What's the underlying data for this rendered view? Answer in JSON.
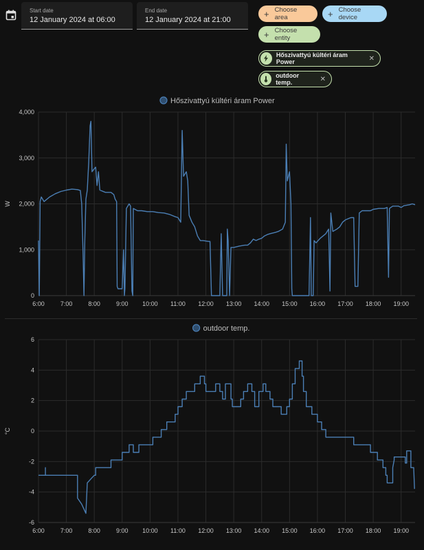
{
  "picker": {
    "start_label": "Start date",
    "start_value": "12 January 2024 at 06:00",
    "end_label": "End date",
    "end_value": "12 January 2024 at 21:00",
    "calendar_icon": "calendar-icon"
  },
  "chips": {
    "area": "Choose area",
    "device": "Choose device",
    "entity": "Choose entity",
    "area_color": "#f9c99a",
    "device_color": "#a8d8f5",
    "entity_color": "#c4e0ad"
  },
  "selected": [
    {
      "label": "Hőszivattyú kültéri áram Power",
      "icon": "lightning-icon"
    },
    {
      "label": "outdoor temp.",
      "icon": "thermometer-icon"
    }
  ],
  "chart_data": [
    {
      "type": "line",
      "legend": "Hőszivattyú kültéri áram Power",
      "ylabel": "W",
      "color": "#4b7fb5",
      "ylim": [
        0,
        4000
      ],
      "yticks": [
        "0",
        "1,000",
        "2,000",
        "3,000",
        "4,000"
      ],
      "xlim": [
        6.0,
        19.5
      ],
      "xticks": [
        "6:00",
        "7:00",
        "8:00",
        "9:00",
        "10:00",
        "11:00",
        "12:00",
        "13:00",
        "14:00",
        "15:00",
        "16:00",
        "17:00",
        "18:00",
        "19:00"
      ],
      "grid": true,
      "points": [
        [
          6.0,
          1200
        ],
        [
          6.03,
          0
        ],
        [
          6.06,
          2050
        ],
        [
          6.1,
          2150
        ],
        [
          6.2,
          2050
        ],
        [
          6.4,
          2150
        ],
        [
          6.6,
          2220
        ],
        [
          6.8,
          2270
        ],
        [
          7.0,
          2300
        ],
        [
          7.2,
          2320
        ],
        [
          7.4,
          2310
        ],
        [
          7.5,
          2290
        ],
        [
          7.55,
          2000
        ],
        [
          7.6,
          900
        ],
        [
          7.63,
          0
        ],
        [
          7.66,
          1200
        ],
        [
          7.7,
          2100
        ],
        [
          7.75,
          2300
        ],
        [
          7.8,
          2900
        ],
        [
          7.85,
          3700
        ],
        [
          7.88,
          3800
        ],
        [
          7.92,
          2700
        ],
        [
          7.98,
          2750
        ],
        [
          8.05,
          2800
        ],
        [
          8.1,
          2400
        ],
        [
          8.15,
          2700
        ],
        [
          8.2,
          2300
        ],
        [
          8.4,
          2250
        ],
        [
          8.6,
          2250
        ],
        [
          8.7,
          2200
        ],
        [
          8.75,
          2100
        ],
        [
          8.8,
          2050
        ],
        [
          8.82,
          200
        ],
        [
          8.85,
          150
        ],
        [
          9.0,
          150
        ],
        [
          9.05,
          1000
        ],
        [
          9.08,
          0
        ],
        [
          9.1,
          150
        ],
        [
          9.15,
          1900
        ],
        [
          9.25,
          2000
        ],
        [
          9.3,
          1950
        ],
        [
          9.35,
          100
        ],
        [
          9.38,
          0
        ],
        [
          9.4,
          1900
        ],
        [
          9.55,
          1850
        ],
        [
          9.7,
          1850
        ],
        [
          9.9,
          1830
        ],
        [
          10.1,
          1830
        ],
        [
          10.3,
          1810
        ],
        [
          10.5,
          1800
        ],
        [
          10.7,
          1770
        ],
        [
          10.9,
          1720
        ],
        [
          11.0,
          1700
        ],
        [
          11.05,
          1650
        ],
        [
          11.1,
          1600
        ],
        [
          11.15,
          3600
        ],
        [
          11.2,
          2600
        ],
        [
          11.3,
          2700
        ],
        [
          11.35,
          2500
        ],
        [
          11.4,
          1750
        ],
        [
          11.5,
          1600
        ],
        [
          11.6,
          1500
        ],
        [
          11.7,
          1300
        ],
        [
          11.8,
          1200
        ],
        [
          11.9,
          1200
        ],
        [
          12.1,
          1180
        ],
        [
          12.15,
          1180
        ],
        [
          12.2,
          0
        ],
        [
          12.5,
          0
        ],
        [
          12.55,
          1350
        ],
        [
          12.6,
          0
        ],
        [
          12.75,
          0
        ],
        [
          12.77,
          1450
        ],
        [
          12.8,
          1200
        ],
        [
          12.85,
          0
        ],
        [
          12.9,
          1050
        ],
        [
          13.0,
          1050
        ],
        [
          13.2,
          1080
        ],
        [
          13.4,
          1100
        ],
        [
          13.5,
          1100
        ],
        [
          13.6,
          1150
        ],
        [
          13.7,
          1230
        ],
        [
          13.8,
          1200
        ],
        [
          13.9,
          1230
        ],
        [
          14.0,
          1250
        ],
        [
          14.1,
          1300
        ],
        [
          14.2,
          1330
        ],
        [
          14.3,
          1350
        ],
        [
          14.5,
          1380
        ],
        [
          14.6,
          1400
        ],
        [
          14.75,
          1450
        ],
        [
          14.85,
          1600
        ],
        [
          14.88,
          3300
        ],
        [
          14.92,
          2500
        ],
        [
          15.0,
          2700
        ],
        [
          15.05,
          2000
        ],
        [
          15.08,
          150
        ],
        [
          15.1,
          0
        ],
        [
          15.7,
          0
        ],
        [
          15.75,
          1700
        ],
        [
          15.78,
          0
        ],
        [
          15.85,
          0
        ],
        [
          15.88,
          1200
        ],
        [
          15.95,
          1150
        ],
        [
          16.1,
          1250
        ],
        [
          16.3,
          1350
        ],
        [
          16.4,
          1450
        ],
        [
          16.45,
          100
        ],
        [
          16.48,
          1800
        ],
        [
          16.55,
          1400
        ],
        [
          16.7,
          1450
        ],
        [
          16.8,
          1500
        ],
        [
          16.9,
          1600
        ],
        [
          17.0,
          1650
        ],
        [
          17.2,
          1700
        ],
        [
          17.3,
          1700
        ],
        [
          17.35,
          200
        ],
        [
          17.45,
          200
        ],
        [
          17.5,
          1800
        ],
        [
          17.6,
          1850
        ],
        [
          17.8,
          1850
        ],
        [
          17.9,
          1850
        ],
        [
          18.0,
          1880
        ],
        [
          18.2,
          1900
        ],
        [
          18.4,
          1900
        ],
        [
          18.5,
          1920
        ],
        [
          18.55,
          400
        ],
        [
          18.58,
          1900
        ],
        [
          18.7,
          1950
        ],
        [
          18.9,
          1950
        ],
        [
          19.0,
          1920
        ],
        [
          19.1,
          1960
        ],
        [
          19.3,
          1980
        ],
        [
          19.4,
          2000
        ],
        [
          19.5,
          1980
        ]
      ]
    },
    {
      "type": "line",
      "legend": "outdoor temp.",
      "ylabel": "°C",
      "color": "#4b7fb5",
      "ylim": [
        -6,
        6
      ],
      "yticks": [
        "-6",
        "-4",
        "-2",
        "0",
        "2",
        "4",
        "6"
      ],
      "xlim": [
        6.0,
        19.5
      ],
      "xticks": [
        "6:00",
        "7:00",
        "8:00",
        "9:00",
        "10:00",
        "11:00",
        "12:00",
        "13:00",
        "14:00",
        "15:00",
        "16:00",
        "17:00",
        "18:00",
        "19:00"
      ],
      "grid": true,
      "points": [
        [
          6.0,
          -2.9
        ],
        [
          6.25,
          -2.9
        ],
        [
          6.25,
          -2.4
        ],
        [
          6.25,
          -2.9
        ],
        [
          7.4,
          -2.9
        ],
        [
          7.4,
          -4.4
        ],
        [
          7.55,
          -4.8
        ],
        [
          7.7,
          -5.4
        ],
        [
          7.75,
          -3.4
        ],
        [
          7.9,
          -3.1
        ],
        [
          8.0,
          -2.9
        ],
        [
          8.05,
          -2.9
        ],
        [
          8.05,
          -2.4
        ],
        [
          8.6,
          -2.4
        ],
        [
          8.6,
          -1.9
        ],
        [
          9.0,
          -1.9
        ],
        [
          9.0,
          -1.4
        ],
        [
          9.25,
          -1.4
        ],
        [
          9.25,
          -0.9
        ],
        [
          9.4,
          -0.9
        ],
        [
          9.4,
          -1.4
        ],
        [
          9.6,
          -1.4
        ],
        [
          9.6,
          -0.9
        ],
        [
          10.1,
          -0.9
        ],
        [
          10.1,
          -0.4
        ],
        [
          10.4,
          -0.4
        ],
        [
          10.4,
          0.1
        ],
        [
          10.6,
          0.1
        ],
        [
          10.6,
          0.6
        ],
        [
          10.9,
          0.6
        ],
        [
          10.9,
          1.1
        ],
        [
          11.0,
          1.1
        ],
        [
          11.0,
          1.6
        ],
        [
          11.15,
          1.6
        ],
        [
          11.15,
          2.1
        ],
        [
          11.3,
          2.1
        ],
        [
          11.3,
          2.6
        ],
        [
          11.6,
          2.6
        ],
        [
          11.6,
          3.1
        ],
        [
          11.8,
          3.1
        ],
        [
          11.8,
          3.6
        ],
        [
          11.95,
          3.6
        ],
        [
          11.95,
          3.1
        ],
        [
          12.0,
          3.1
        ],
        [
          12.0,
          2.6
        ],
        [
          12.35,
          2.6
        ],
        [
          12.35,
          3.1
        ],
        [
          12.5,
          3.1
        ],
        [
          12.5,
          2.6
        ],
        [
          12.6,
          2.6
        ],
        [
          12.6,
          2.1
        ],
        [
          12.7,
          2.1
        ],
        [
          12.7,
          3.1
        ],
        [
          12.9,
          3.1
        ],
        [
          12.9,
          2.1
        ],
        [
          12.95,
          2.1
        ],
        [
          12.95,
          1.6
        ],
        [
          13.25,
          1.6
        ],
        [
          13.25,
          2.1
        ],
        [
          13.35,
          2.1
        ],
        [
          13.35,
          2.6
        ],
        [
          13.5,
          2.6
        ],
        [
          13.5,
          3.1
        ],
        [
          13.65,
          3.1
        ],
        [
          13.65,
          2.6
        ],
        [
          13.75,
          2.6
        ],
        [
          13.75,
          1.6
        ],
        [
          13.9,
          1.6
        ],
        [
          13.9,
          2.6
        ],
        [
          14.05,
          2.6
        ],
        [
          14.05,
          3.1
        ],
        [
          14.15,
          3.1
        ],
        [
          14.15,
          2.6
        ],
        [
          14.3,
          2.6
        ],
        [
          14.3,
          2.1
        ],
        [
          14.4,
          2.1
        ],
        [
          14.4,
          1.6
        ],
        [
          14.7,
          1.6
        ],
        [
          14.7,
          1.1
        ],
        [
          14.9,
          1.1
        ],
        [
          14.9,
          1.6
        ],
        [
          15.0,
          1.6
        ],
        [
          15.0,
          2.1
        ],
        [
          15.1,
          2.1
        ],
        [
          15.1,
          3.1
        ],
        [
          15.2,
          3.1
        ],
        [
          15.2,
          4.1
        ],
        [
          15.35,
          4.1
        ],
        [
          15.35,
          4.6
        ],
        [
          15.45,
          4.6
        ],
        [
          15.45,
          3.6
        ],
        [
          15.5,
          3.6
        ],
        [
          15.5,
          2.6
        ],
        [
          15.6,
          2.6
        ],
        [
          15.6,
          1.6
        ],
        [
          15.8,
          1.6
        ],
        [
          15.8,
          1.1
        ],
        [
          16.0,
          1.1
        ],
        [
          16.0,
          0.6
        ],
        [
          16.15,
          0.6
        ],
        [
          16.15,
          0.1
        ],
        [
          16.3,
          0.1
        ],
        [
          16.3,
          -0.4
        ],
        [
          16.8,
          -0.4
        ],
        [
          16.8,
          -0.4
        ],
        [
          17.3,
          -0.4
        ],
        [
          17.3,
          -0.9
        ],
        [
          17.9,
          -0.9
        ],
        [
          17.9,
          -1.4
        ],
        [
          18.15,
          -1.4
        ],
        [
          18.15,
          -1.9
        ],
        [
          18.35,
          -1.9
        ],
        [
          18.35,
          -2.4
        ],
        [
          18.45,
          -2.4
        ],
        [
          18.45,
          -2.9
        ],
        [
          18.5,
          -2.9
        ],
        [
          18.5,
          -3.4
        ],
        [
          18.7,
          -3.4
        ],
        [
          18.7,
          -2.4
        ],
        [
          18.75,
          -1.9
        ],
        [
          18.75,
          -1.7
        ],
        [
          19.15,
          -1.7
        ],
        [
          19.15,
          -2.1
        ],
        [
          19.2,
          -2.1
        ],
        [
          19.2,
          -1.3
        ],
        [
          19.35,
          -1.3
        ],
        [
          19.35,
          -2.4
        ],
        [
          19.45,
          -2.4
        ],
        [
          19.48,
          -3.8
        ]
      ]
    }
  ]
}
